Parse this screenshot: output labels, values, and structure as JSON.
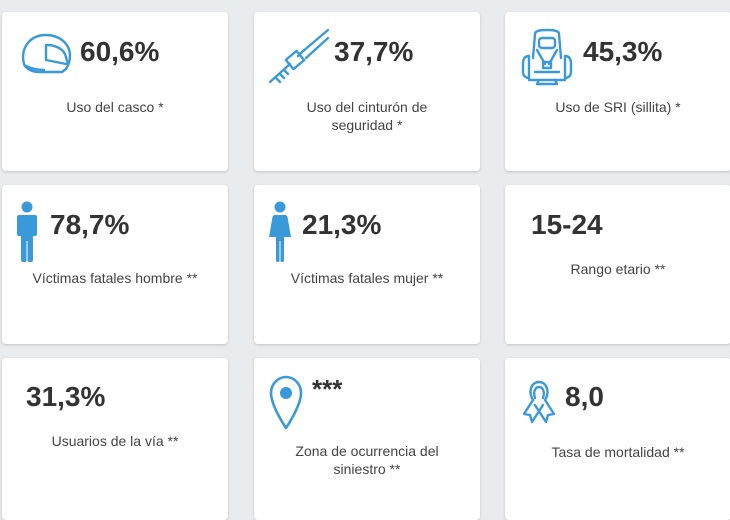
{
  "accent_color": "#3a9ad9",
  "cards": [
    {
      "icon": "helmet-icon",
      "value": "60,6%",
      "label": "Uso del casco *"
    },
    {
      "icon": "seatbelt-icon",
      "value": "37,7%",
      "label": "Uso del cinturón de seguridad *"
    },
    {
      "icon": "child-seat-icon",
      "value": "45,3%",
      "label": "Uso de SRI (sillita) *"
    },
    {
      "icon": "male-person-icon",
      "value": "78,7%",
      "label": "Víctimas fatales hombre **"
    },
    {
      "icon": "female-person-icon",
      "value": "21,3%",
      "label": "Víctimas fatales mujer **"
    },
    {
      "icon": "",
      "value": "15-24",
      "label": "Rango etario **"
    },
    {
      "icon": "",
      "value": "31,3%",
      "label": "Usuarios de la vía **"
    },
    {
      "icon": "location-pin-icon",
      "value": "***",
      "label": "Zona de ocurrencia del siniestro **"
    },
    {
      "icon": "ribbon-icon",
      "value": "8,0",
      "label": "Tasa de mortalidad **"
    }
  ]
}
